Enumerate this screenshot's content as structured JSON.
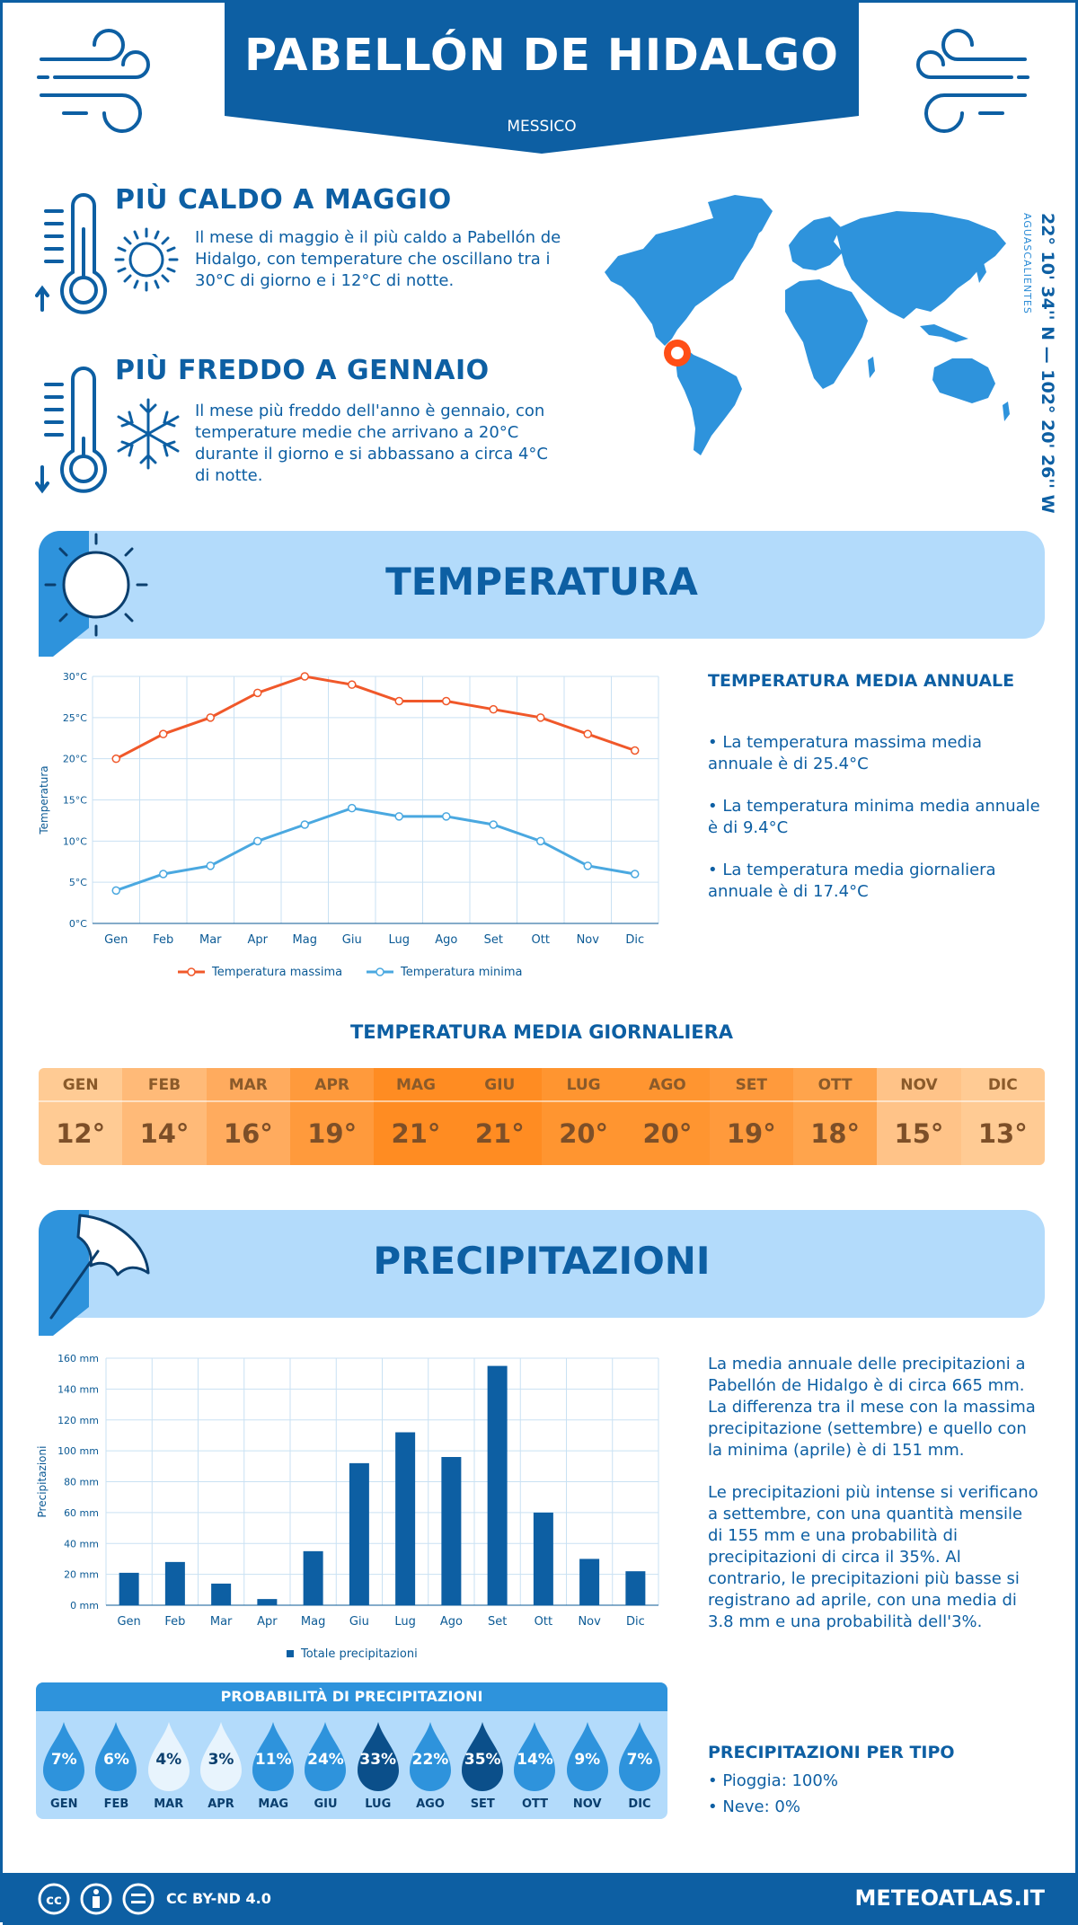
{
  "header": {
    "title": "PABELLÓN DE HIDALGO",
    "subtitle": "MESSICO"
  },
  "warmest": {
    "title": "PIÙ CALDO A MAGGIO",
    "text": [
      "Il mese di maggio è il più caldo a Pabellón de",
      "Hidalgo, con temperature che oscillano tra i",
      "30°C di giorno e i 12°C di notte."
    ]
  },
  "coldest": {
    "title": "PIÙ FREDDO A GENNAIO",
    "text": [
      "Il mese più freddo dell'anno è gennaio, con",
      "temperature medie che arrivano a 20°C",
      "durante il giorno e si abbassano a circa 4°C",
      "di notte."
    ]
  },
  "location": {
    "coords": "22° 10' 34'' N — 102° 20' 26'' W",
    "region": "AGUASCALIENTES"
  },
  "temperature": {
    "title": "TEMPERATURA",
    "side_title": "TEMPERATURA MEDIA ANNUALE",
    "bullets": [
      [
        "• La temperatura massima media",
        "annuale è di 25.4°C"
      ],
      [
        "• La temperatura minima media annuale",
        "è di 9.4°C"
      ],
      [
        "• La temperatura media giornaliera",
        "annuale è di 17.4°C"
      ]
    ]
  },
  "daily": {
    "title": "TEMPERATURA MEDIA GIORNALIERA",
    "months": [
      "GEN",
      "FEB",
      "MAR",
      "APR",
      "MAG",
      "GIU",
      "LUG",
      "AGO",
      "SET",
      "OTT",
      "NOV",
      "DIC"
    ],
    "values": [
      "12°",
      "14°",
      "16°",
      "19°",
      "21°",
      "21°",
      "20°",
      "20°",
      "19°",
      "18°",
      "15°",
      "13°"
    ],
    "colors": [
      "#ffcb94",
      "#ffba78",
      "#ffab5e",
      "#ff9a3c",
      "#ff8c22",
      "#ff8c22",
      "#ff9530",
      "#ff9530",
      "#ff9a3c",
      "#ffa44c",
      "#ffc388",
      "#ffcb94"
    ]
  },
  "precip": {
    "title": "PRECIPITAZIONI",
    "text1": [
      "La media annuale delle precipitazioni a",
      "Pabellón de Hidalgo è di circa 665 mm.",
      "La differenza tra il mese con la massima",
      "precipitazione (settembre) e quello con",
      "la minima (aprile) è di 151 mm."
    ],
    "text2": [
      "Le precipitazioni più intense si verificano",
      "a settembre, con una quantità mensile",
      "di 155 mm e una probabilità di",
      "precipitazioni di circa il 35%. Al",
      "contrario, le precipitazioni più basse si",
      "registrano ad aprile, con una media di",
      "3.8 mm e una probabilità dell'3%."
    ],
    "type_title": "PRECIPITAZIONI PER TIPO",
    "types": [
      "• Pioggia: 100%",
      "• Neve: 0%"
    ]
  },
  "probability": {
    "title": "PROBABILITÀ DI PRECIPITAZIONI",
    "months": [
      "GEN",
      "FEB",
      "MAR",
      "APR",
      "MAG",
      "GIU",
      "LUG",
      "AGO",
      "SET",
      "OTT",
      "NOV",
      "DIC"
    ],
    "values": [
      "7%",
      "6%",
      "4%",
      "3%",
      "11%",
      "24%",
      "33%",
      "22%",
      "35%",
      "14%",
      "9%",
      "7%"
    ],
    "colors": [
      "#2e93dc",
      "#2e93dc",
      "#e8f4fd",
      "#e8f4fd",
      "#2e93dc",
      "#2e93dc",
      "#0b4f8a",
      "#2e93dc",
      "#0b4f8a",
      "#2e93dc",
      "#2e93dc",
      "#2e93dc"
    ]
  },
  "footer": {
    "license": "CC BY-ND 4.0",
    "site": "METEOATLAS.IT"
  },
  "chart_data": [
    {
      "type": "line",
      "x": [
        "Gen",
        "Feb",
        "Mar",
        "Apr",
        "Mag",
        "Giu",
        "Lug",
        "Ago",
        "Set",
        "Ott",
        "Nov",
        "Dic"
      ],
      "series": [
        {
          "name": "Temperatura massima",
          "values": [
            20,
            23,
            25,
            28,
            30,
            29,
            27,
            27,
            26,
            25,
            23,
            21
          ],
          "color": "#f0582a"
        },
        {
          "name": "Temperatura minima",
          "values": [
            4,
            6,
            7,
            10,
            12,
            14,
            13,
            13,
            12,
            10,
            7,
            6
          ],
          "color": "#4aa8e0"
        }
      ],
      "ylabel": "Temperatura",
      "ylim": [
        0,
        30
      ],
      "yticks": [
        "0°C",
        "5°C",
        "10°C",
        "15°C",
        "20°C",
        "25°C",
        "30°C"
      ],
      "grid": true,
      "legend": "bottom"
    },
    {
      "type": "bar",
      "x": [
        "Gen",
        "Feb",
        "Mar",
        "Apr",
        "Mag",
        "Giu",
        "Lug",
        "Ago",
        "Set",
        "Ott",
        "Nov",
        "Dic"
      ],
      "series": [
        {
          "name": "Totale precipitazioni",
          "values": [
            21,
            28,
            14,
            4,
            35,
            92,
            112,
            96,
            155,
            60,
            30,
            22
          ],
          "color": "#0d5fa3"
        }
      ],
      "ylabel": "Precipitazioni",
      "ylim": [
        0,
        160
      ],
      "yticks": [
        "0 mm",
        "20 mm",
        "40 mm",
        "60 mm",
        "80 mm",
        "100 mm",
        "120 mm",
        "140 mm",
        "160 mm"
      ],
      "grid": true,
      "legend": "bottom"
    }
  ]
}
